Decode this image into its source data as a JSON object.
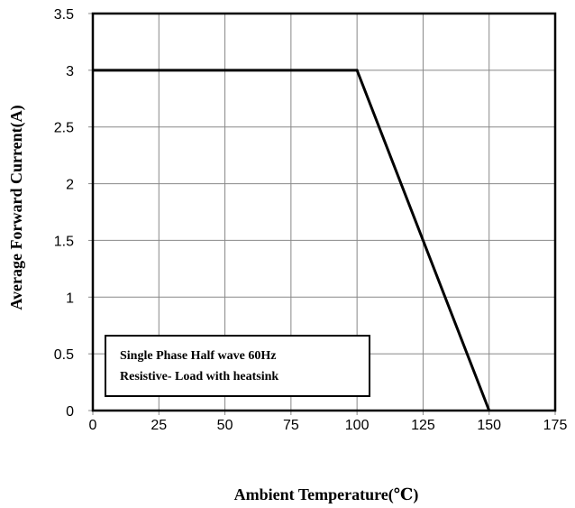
{
  "chart_data": {
    "type": "line",
    "title": "",
    "xlabel": "Ambient Temperature(℃)",
    "ylabel": "Average Forward Current(A)",
    "xlim": [
      0,
      175
    ],
    "ylim": [
      0,
      3.5
    ],
    "xticks": [
      0,
      25,
      50,
      75,
      100,
      125,
      150,
      175
    ],
    "yticks": [
      0,
      0.5,
      1,
      1.5,
      2,
      2.5,
      3,
      3.5
    ],
    "xtick_labels": [
      "0",
      "25",
      "50",
      "75",
      "100",
      "125",
      "150",
      "175"
    ],
    "ytick_labels": [
      "0",
      "0.5",
      "1",
      "1.5",
      "2",
      "2.5",
      "3",
      "3.5"
    ],
    "grid": true,
    "series": [
      {
        "x": [
          0,
          100,
          150
        ],
        "y": [
          3,
          3,
          0
        ]
      }
    ],
    "annotation": {
      "lines": [
        "Single Phase Half wave 60Hz",
        "Resistive- Load with heatsink"
      ]
    }
  }
}
